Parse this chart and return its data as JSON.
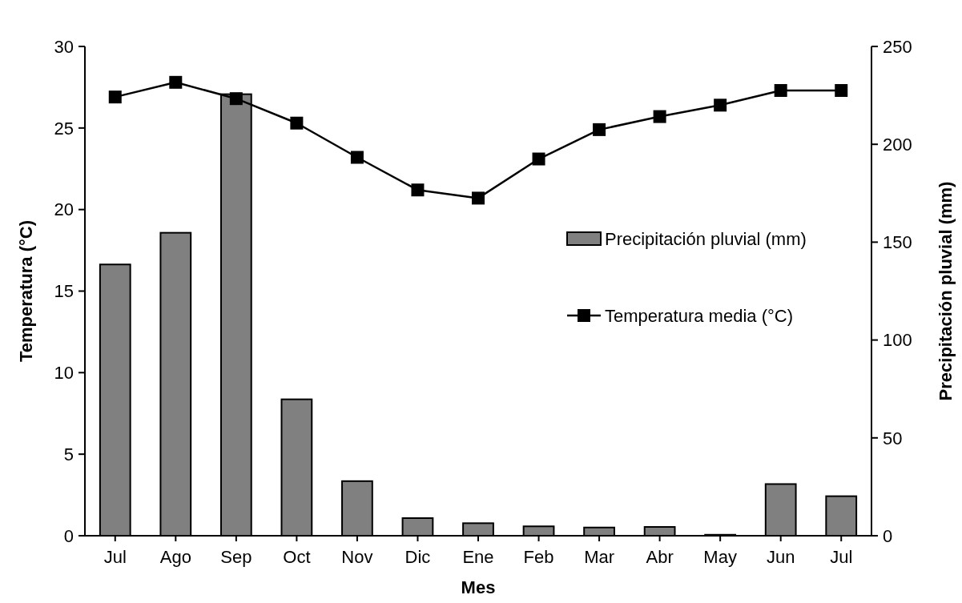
{
  "chart_data": {
    "type": "bar",
    "xlabel": "Mes",
    "ylabel": "Temperatura (°C)",
    "y2label": "Precipitación pluvial (mm)",
    "categories": [
      "Jul",
      "Ago",
      "Sep",
      "Oct",
      "Nov",
      "Dic",
      "Ene",
      "Feb",
      "Mar",
      "Abr",
      "May",
      "Jun",
      "Jul"
    ],
    "series": [
      {
        "name": "Precipitación pluvial (mm)",
        "axis": "y2",
        "color": "#808080",
        "values": [
          138.6,
          154.8,
          225.6,
          69.7,
          27.9,
          9.0,
          6.4,
          4.8,
          4.2,
          4.5,
          0.5,
          26.4,
          20.2
        ]
      },
      {
        "name": "Temperatura media (°C)",
        "type": "line",
        "axis": "y",
        "color": "#000000",
        "marker": "square",
        "values": [
          26.9,
          27.8,
          26.8,
          25.3,
          23.2,
          21.2,
          20.7,
          23.1,
          24.9,
          25.7,
          26.4,
          27.3,
          27.3
        ]
      }
    ],
    "ylim": [
      0,
      30
    ],
    "yticks": [
      0,
      5,
      10,
      15,
      20,
      25,
      30
    ],
    "y2lim": [
      0,
      250
    ],
    "y2ticks": [
      0,
      50,
      100,
      150,
      200,
      250
    ],
    "grid": false,
    "legend": "right"
  }
}
